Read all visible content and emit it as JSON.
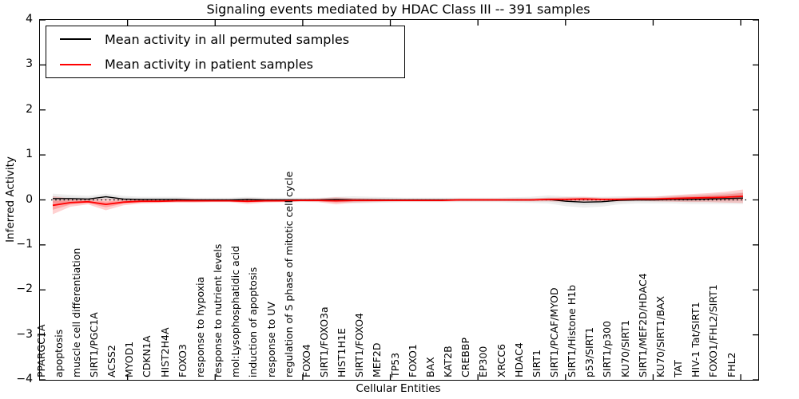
{
  "title": "Signaling events mediated by HDAC Class III -- 391 samples",
  "axes": {
    "x_label": "Cellular Entities",
    "y_label": "Inferred Activity",
    "y_ticks": [
      4,
      3,
      2,
      1,
      0,
      -1,
      -2,
      -3,
      -4
    ],
    "y_range": [
      -4,
      4
    ]
  },
  "legend": {
    "items": [
      {
        "label": "Mean activity in all permuted samples",
        "color": "#000000"
      },
      {
        "label": "Mean activity in patient samples",
        "color": "#ff0000"
      }
    ]
  },
  "colors": {
    "permuted_line": "#000000",
    "patient_line": "#ff0000",
    "permuted_band": "#888888",
    "patient_band": "#ff0000",
    "zero_line": "#000000",
    "axis": "#000000"
  },
  "chart_data": {
    "type": "line",
    "title": "Signaling events mediated by HDAC Class III -- 391 samples",
    "xlabel": "Cellular Entities",
    "ylabel": "Inferred Activity",
    "ylim": [
      -4,
      4
    ],
    "grid": false,
    "legend_position": "upper left",
    "zero_line": "dotted",
    "categories": [
      "PPARGC1A",
      "apoptosis",
      "muscle cell differentiation",
      "SIRT1/PGC1A",
      "ACSS2",
      "MYOD1",
      "CDKN1A",
      "HIST2H4A",
      "FOXO3",
      "response to hypoxia",
      "response to nutrient levels",
      "mol:Lysophosphatidic acid",
      "induction of apoptosis",
      "response to UV",
      "regulation of S phase of mitotic cell cycle",
      "FOXO4",
      "SIRT1/FOXO3a",
      "HIST1H1E",
      "SIRT1/FOXO4",
      "MEF2D",
      "TP53",
      "FOXO1",
      "BAX",
      "KAT2B",
      "CREBBP",
      "EP300",
      "XRCC6",
      "HDAC4",
      "SIRT1",
      "SIRT1/PCAF/MYOD",
      "SIRT1/Histone H1b",
      "p53/SIRT1",
      "SIRT1/p300",
      "KU70/SIRT1",
      "SIRT1/MEF2D/HDAC4",
      "KU70/SIRT1/BAX",
      "TAT",
      "HIV-1 Tat/SIRT1",
      "FOXO1/FHL2/SIRT1",
      "FHL2"
    ],
    "series": [
      {
        "name": "Mean activity in all permuted samples",
        "color": "#000000",
        "band_color": "#888888",
        "values": [
          0.03,
          0.03,
          0.02,
          0.07,
          0.02,
          0.01,
          0.01,
          0.01,
          0.0,
          0.0,
          0.0,
          0.01,
          0.0,
          0.0,
          0.0,
          0.0,
          0.01,
          0.0,
          0.0,
          0.0,
          0.0,
          0.0,
          0.0,
          0.0,
          0.0,
          0.0,
          0.0,
          0.0,
          0.01,
          -0.03,
          -0.05,
          -0.04,
          -0.01,
          0.0,
          0.0,
          0.01,
          0.01,
          0.02,
          0.03,
          0.04
        ],
        "band_halfwidth": [
          0.11,
          0.08,
          0.07,
          0.07,
          0.07,
          0.06,
          0.06,
          0.06,
          0.05,
          0.05,
          0.05,
          0.06,
          0.05,
          0.05,
          0.05,
          0.05,
          0.06,
          0.08,
          0.07,
          0.06,
          0.05,
          0.05,
          0.05,
          0.05,
          0.05,
          0.05,
          0.06,
          0.07,
          0.09,
          0.11,
          0.12,
          0.11,
          0.09,
          0.08,
          0.08,
          0.09,
          0.1,
          0.11,
          0.12,
          0.13
        ]
      },
      {
        "name": "Mean activity in patient samples",
        "color": "#ff0000",
        "band_color": "#ff0000",
        "values": [
          -0.12,
          -0.06,
          -0.04,
          -0.1,
          -0.05,
          -0.03,
          -0.03,
          -0.02,
          -0.02,
          -0.02,
          -0.02,
          -0.03,
          -0.02,
          -0.02,
          -0.01,
          -0.01,
          -0.02,
          -0.01,
          -0.01,
          -0.01,
          -0.01,
          -0.01,
          -0.01,
          0.0,
          0.0,
          0.0,
          0.0,
          0.0,
          0.01,
          0.01,
          0.02,
          0.01,
          0.01,
          0.02,
          0.02,
          0.03,
          0.04,
          0.05,
          0.06,
          0.08
        ],
        "band_halfwidth": [
          0.2,
          0.09,
          0.06,
          0.13,
          0.07,
          0.05,
          0.04,
          0.04,
          0.04,
          0.03,
          0.03,
          0.06,
          0.04,
          0.03,
          0.03,
          0.04,
          0.08,
          0.05,
          0.04,
          0.03,
          0.03,
          0.03,
          0.03,
          0.03,
          0.03,
          0.03,
          0.03,
          0.03,
          0.04,
          0.05,
          0.05,
          0.04,
          0.04,
          0.04,
          0.05,
          0.07,
          0.09,
          0.1,
          0.12,
          0.15
        ]
      }
    ]
  }
}
